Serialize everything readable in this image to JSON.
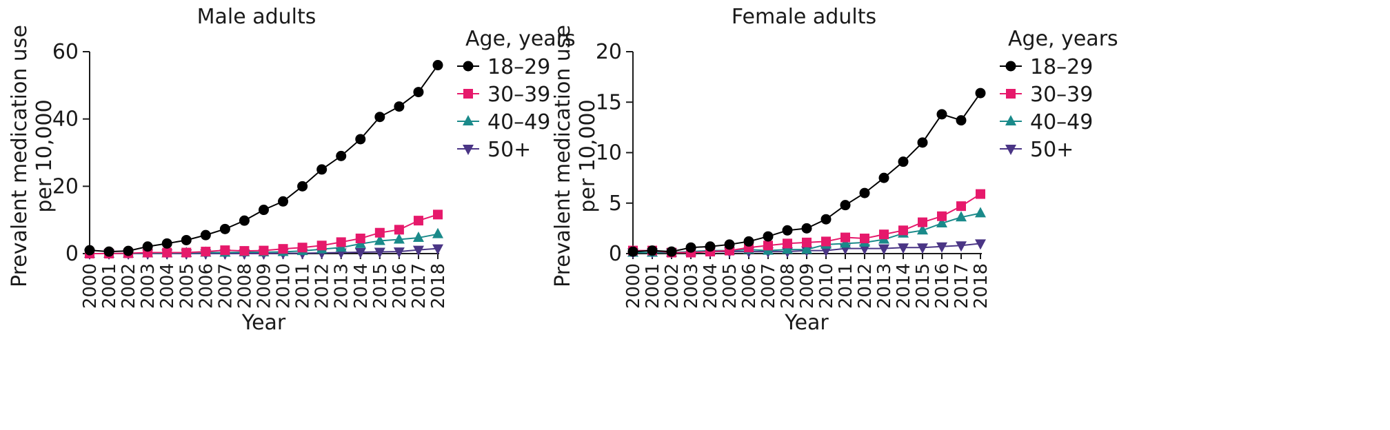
{
  "chart_data": [
    {
      "type": "line",
      "title": "Male adults",
      "xlabel": "Year",
      "ylabel": "Prevalent medication use per 10,000",
      "ylabel_lines": [
        "Prevalent medication use",
        "per 10,000"
      ],
      "ylim": [
        0,
        60
      ],
      "yticks": [
        0,
        20,
        40,
        60
      ],
      "grid": false,
      "legend_title": "Age, years",
      "legend_position": "right",
      "x": [
        "2000",
        "2001",
        "2002",
        "2003",
        "2004",
        "2005",
        "2006",
        "2007",
        "2008",
        "2009",
        "2010",
        "2011",
        "2012",
        "2013",
        "2014",
        "2015",
        "2016",
        "2017",
        "2018"
      ],
      "series": [
        {
          "name": "18–29",
          "marker": "circle",
          "color": "#000000",
          "values": [
            1.0,
            0.6,
            0.8,
            2.1,
            3.0,
            4.0,
            5.5,
            7.3,
            9.8,
            13.0,
            15.5,
            20.0,
            25.0,
            29.0,
            34.0,
            40.6,
            43.7,
            48.0,
            56.0
          ]
        },
        {
          "name": "30–39",
          "marker": "square",
          "color": "#e6196b",
          "values": [
            0.0,
            0.0,
            0.1,
            0.3,
            0.3,
            0.3,
            0.6,
            1.0,
            0.8,
            0.9,
            1.4,
            1.8,
            2.4,
            3.4,
            4.5,
            6.2,
            7.1,
            9.8,
            11.6
          ]
        },
        {
          "name": "40–49",
          "marker": "triangle-up",
          "color": "#1a8a8a",
          "values": [
            0.0,
            0.0,
            0.0,
            0.1,
            0.1,
            0.2,
            0.3,
            0.3,
            0.4,
            0.4,
            0.5,
            0.8,
            1.3,
            1.8,
            2.9,
            3.8,
            4.2,
            4.7,
            5.8
          ]
        },
        {
          "name": "50+",
          "marker": "triangle-down",
          "color": "#4a3585",
          "values": [
            0.0,
            0.0,
            0.0,
            0.0,
            0.0,
            0.0,
            0.0,
            0.0,
            0.0,
            0.0,
            0.1,
            0.1,
            0.2,
            0.3,
            0.4,
            0.5,
            0.6,
            1.1,
            1.5
          ]
        }
      ]
    },
    {
      "type": "line",
      "title": "Female adults",
      "xlabel": "Year",
      "ylabel": "Prevalent medication use per 10,000",
      "ylabel_lines": [
        "Prevalent medication use",
        "per 10,000"
      ],
      "ylim": [
        0,
        20
      ],
      "yticks": [
        0,
        5,
        10,
        15,
        20
      ],
      "grid": false,
      "legend_title": "Age, years",
      "legend_position": "right",
      "x": [
        "2000",
        "2001",
        "2002",
        "2003",
        "2004",
        "2005",
        "2006",
        "2007",
        "2008",
        "2009",
        "2010",
        "2011",
        "2012",
        "2013",
        "2014",
        "2015",
        "2016",
        "2017",
        "2018"
      ],
      "series": [
        {
          "name": "18–29",
          "marker": "circle",
          "color": "#000000",
          "values": [
            0.2,
            0.3,
            0.2,
            0.6,
            0.7,
            0.9,
            1.2,
            1.7,
            2.3,
            2.5,
            3.4,
            4.8,
            6.0,
            7.5,
            9.1,
            11.0,
            13.8,
            13.2,
            15.9
          ]
        },
        {
          "name": "30–39",
          "marker": "square",
          "color": "#e6196b",
          "values": [
            0.3,
            0.3,
            0.1,
            0.1,
            0.2,
            0.3,
            0.6,
            0.8,
            1.0,
            1.1,
            1.2,
            1.6,
            1.5,
            1.9,
            2.3,
            3.1,
            3.7,
            4.7,
            5.9
          ]
        },
        {
          "name": "40–49",
          "marker": "triangle-up",
          "color": "#1a8a8a",
          "values": [
            0.1,
            0.1,
            0.1,
            0.2,
            0.3,
            0.3,
            0.4,
            0.3,
            0.4,
            0.4,
            0.9,
            1.0,
            1.1,
            1.4,
            2.0,
            2.3,
            3.0,
            3.6,
            4.0
          ]
        },
        {
          "name": "50+",
          "marker": "triangle-down",
          "color": "#4a3585",
          "values": [
            0.1,
            0.1,
            0.1,
            0.1,
            0.2,
            0.2,
            0.2,
            0.2,
            0.2,
            0.3,
            0.3,
            0.5,
            0.5,
            0.5,
            0.6,
            0.6,
            0.7,
            0.8,
            1.0
          ]
        }
      ]
    }
  ]
}
